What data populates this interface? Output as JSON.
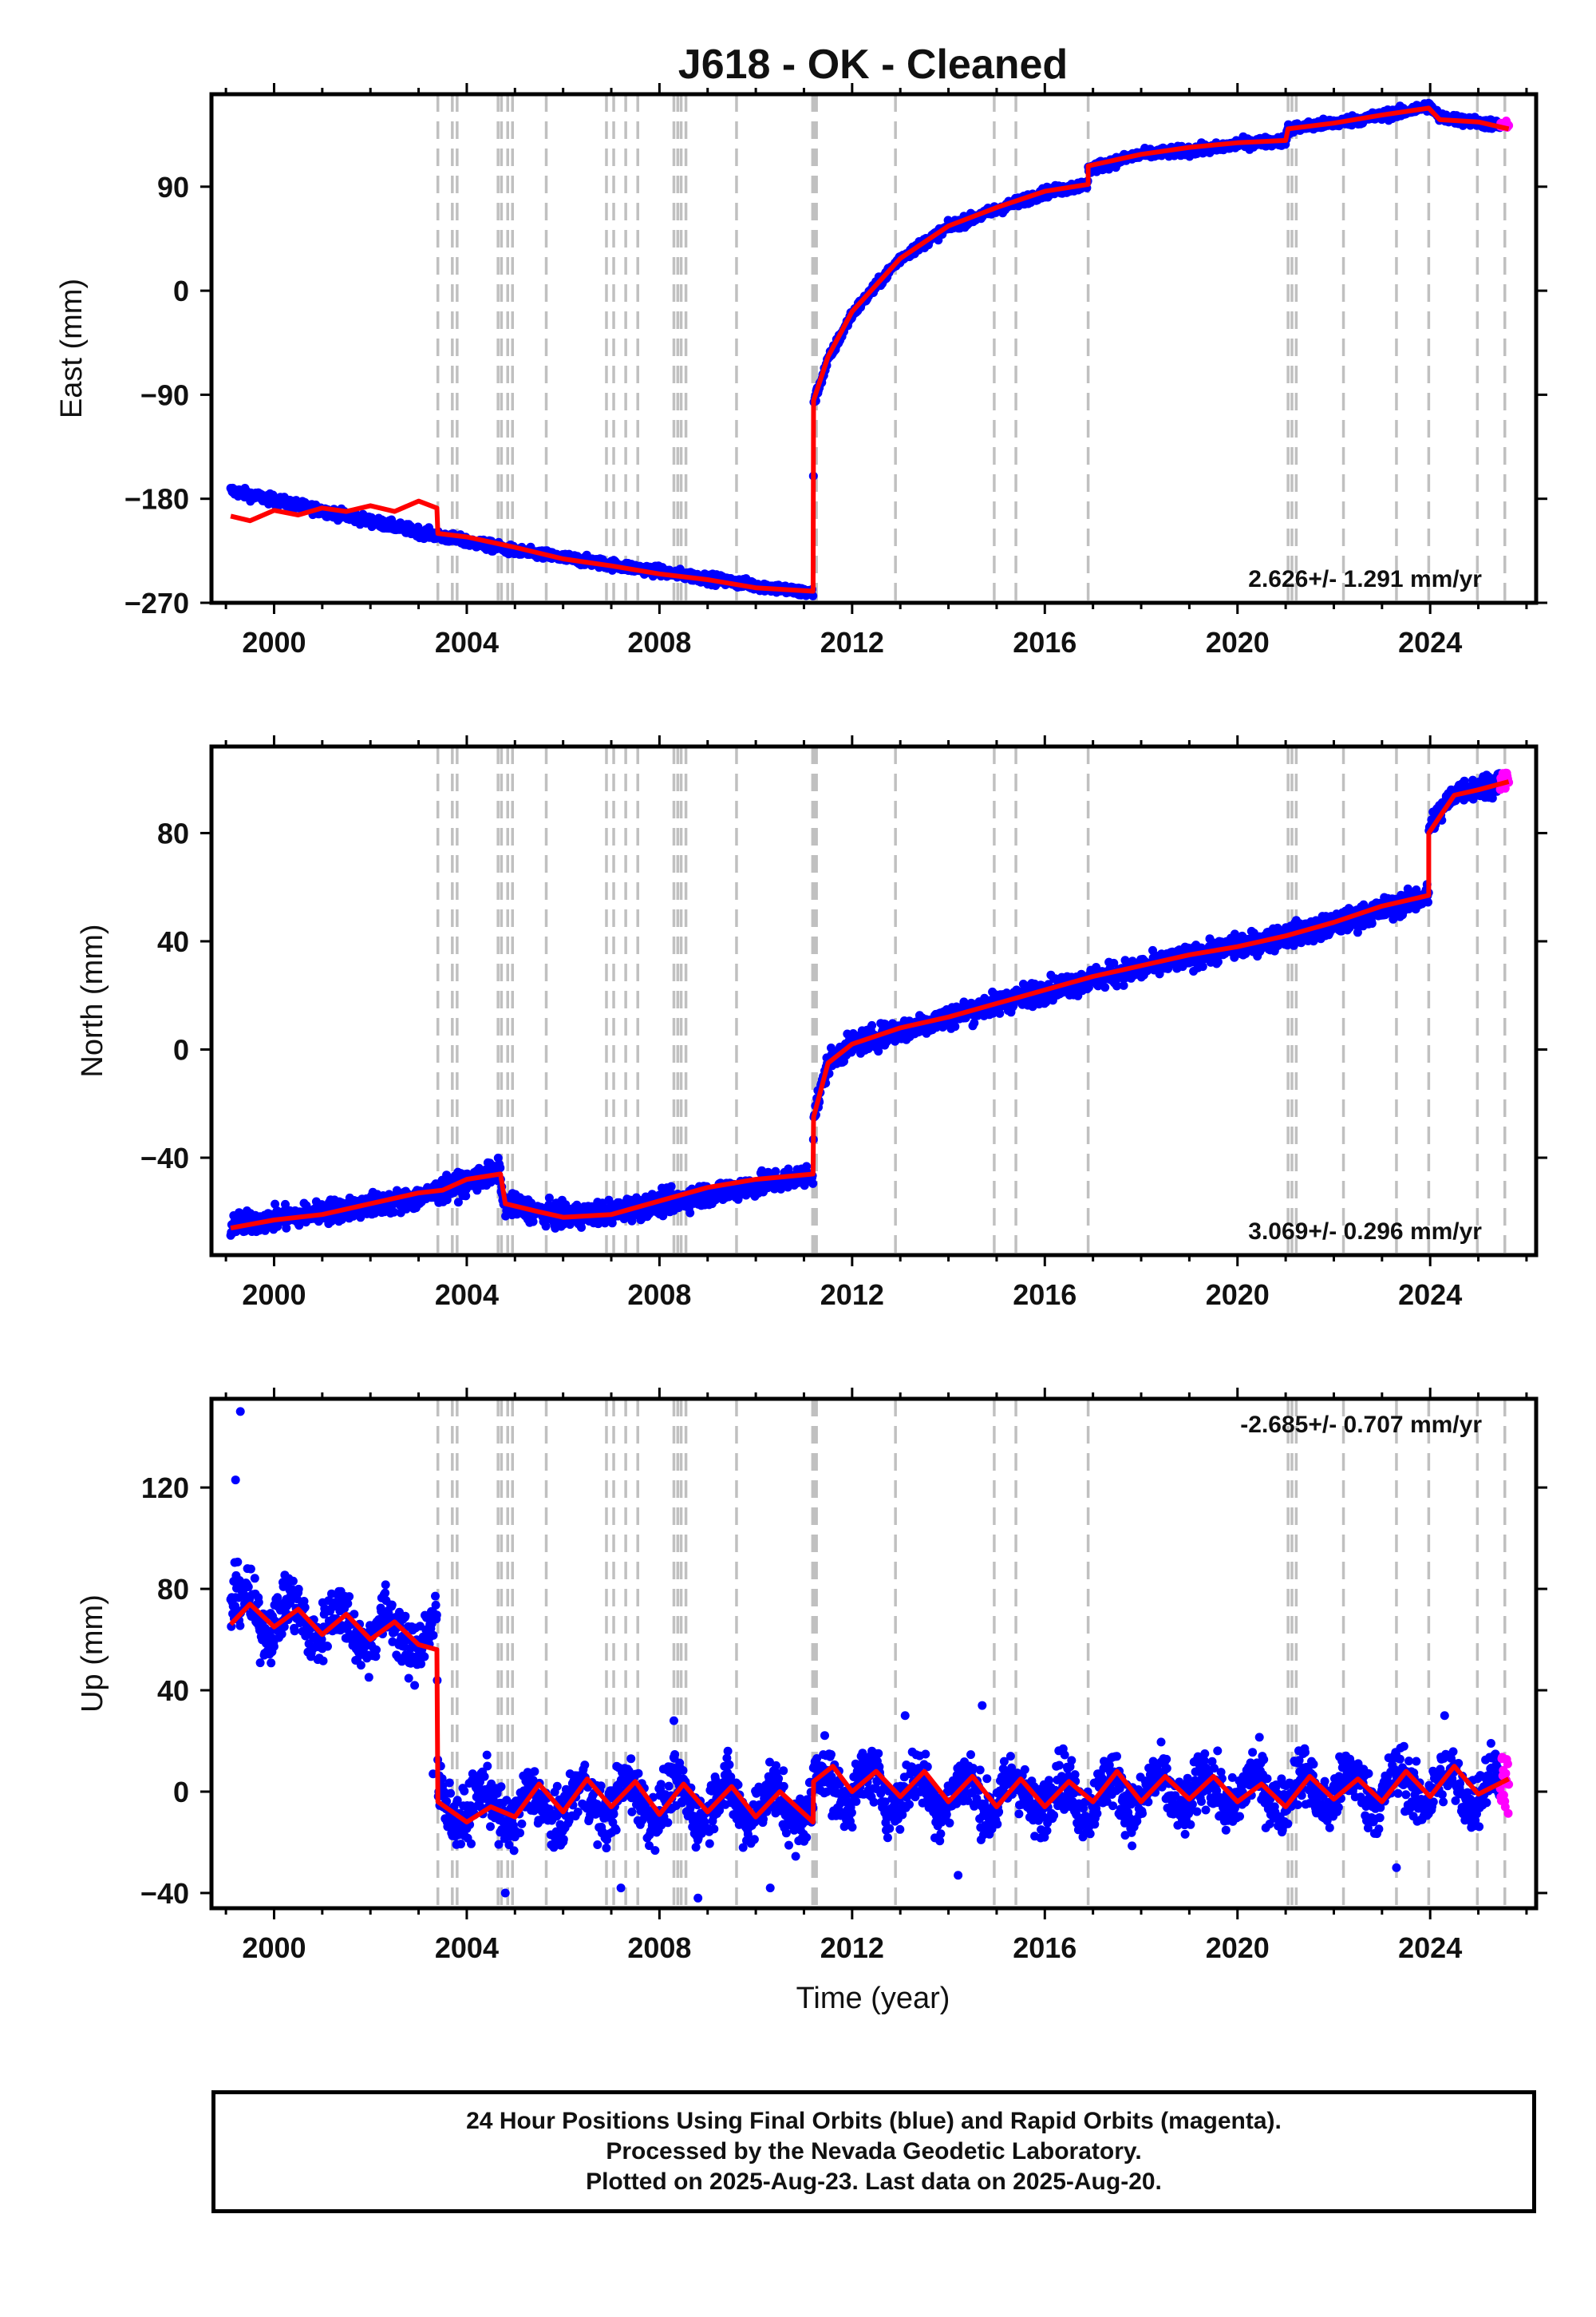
{
  "page": {
    "title": "J618  - OK - Cleaned"
  },
  "colors": {
    "final": "#0000ff",
    "rapid": "#ff00ff",
    "model": "#ff0000",
    "steps": "#c0c0c0",
    "frame": "#000000"
  },
  "xlabel": "Time (year)",
  "footer": {
    "line1": "24 Hour Positions Using Final Orbits (blue) and Rapid Orbits (magenta).",
    "line2": "Processed by the Nevada Geodetic Laboratory.",
    "line3": "Plotted on 2025-Aug-23. Last data on 2025-Aug-20."
  },
  "chart_data": [
    {
      "type": "scatter",
      "name": "east",
      "ylabel": "East (mm)",
      "xlim": [
        1998.7,
        2026.2
      ],
      "ylim": [
        -270,
        170
      ],
      "xticks": [
        2000,
        2004,
        2008,
        2012,
        2016,
        2020,
        2024
      ],
      "yticks": [
        -270,
        -180,
        -90,
        0,
        90
      ],
      "rate_label": "2.626+/- 1.291 mm/yr",
      "x_start": 1999.1,
      "x_end": 2025.63,
      "rapid_start": 2025.45,
      "noise_mm": 3,
      "outliers": [],
      "steps": [
        1999.1,
        -173,
        2003.4,
        -212,
        2005.0,
        -225,
        2011.19,
        -262,
        2011.2,
        -97,
        2011.5,
        -60,
        2012.0,
        -20,
        2013.0,
        28,
        2014.0,
        55,
        2015.0,
        70,
        2016.0,
        85,
        2016.9,
        92,
        2016.9,
        105,
        2018.0,
        118,
        2019.5,
        123,
        2020.0,
        127,
        2021.0,
        130,
        2021.05,
        140,
        2022.5,
        148,
        2023.5,
        155,
        2023.97,
        160,
        2024.2,
        150,
        2025.63,
        142
      ],
      "model": [
        1999.1,
        -195,
        1999.5,
        -199,
        2000.0,
        -190,
        2000.5,
        -194,
        2001.0,
        -188,
        2001.5,
        -191,
        2002.0,
        -186,
        2002.5,
        -191,
        2003.0,
        -182,
        2003.38,
        -188,
        2003.4,
        -210,
        2004.0,
        -213,
        2005.0,
        -222,
        2006.0,
        -232,
        2007.0,
        -238,
        2008.0,
        -245,
        2009.0,
        -250,
        2010.0,
        -257,
        2011.19,
        -260,
        2011.2,
        -95,
        2011.5,
        -57,
        2012.0,
        -18,
        2013.0,
        28,
        2014.0,
        56,
        2015.0,
        72,
        2016.0,
        86,
        2016.9,
        92,
        2016.9,
        108,
        2018.0,
        118,
        2019.0,
        124,
        2020.0,
        128,
        2021.0,
        130,
        2021.05,
        140,
        2022.0,
        145,
        2023.0,
        152,
        2023.97,
        158,
        2024.2,
        148,
        2025.0,
        146,
        2025.63,
        140
      ]
    },
    {
      "type": "scatter",
      "name": "north",
      "ylabel": "North (mm)",
      "xlim": [
        1998.7,
        2026.2
      ],
      "ylim": [
        -76,
        112
      ],
      "xticks": [
        2000,
        2004,
        2008,
        2012,
        2016,
        2020,
        2024
      ],
      "yticks": [
        -40,
        0,
        40,
        80
      ],
      "rate_label": "3.069+/- 0.296 mm/yr",
      "x_start": 1999.1,
      "x_end": 2025.63,
      "rapid_start": 2025.45,
      "noise_mm": 3,
      "outliers": [],
      "steps": [
        1999.1,
        -65,
        2003.0,
        -55,
        2004.7,
        -45,
        2004.75,
        -57,
        2006.0,
        -62,
        2007.0,
        -60,
        2008.0,
        -57,
        2011.19,
        -46,
        2011.2,
        -25,
        2011.5,
        -5,
        2012.0,
        2,
        2014.0,
        12,
        2016.0,
        22,
        2018.0,
        30,
        2020.0,
        38,
        2022.0,
        46,
        2023.97,
        57,
        2023.97,
        82,
        2024.5,
        95,
        2025.63,
        100
      ],
      "model": [
        1999.1,
        -66,
        2000.0,
        -63,
        2001.0,
        -61,
        2002.0,
        -57,
        2003.0,
        -53,
        2003.5,
        -52,
        2004.0,
        -48,
        2004.7,
        -46,
        2004.8,
        -57,
        2005.5,
        -60,
        2006.0,
        -62,
        2007.0,
        -61,
        2008.0,
        -56,
        2009.0,
        -51,
        2010.0,
        -48,
        2011.19,
        -46,
        2011.2,
        -25,
        2011.5,
        -5,
        2012.0,
        2,
        2013.0,
        8,
        2014.0,
        12,
        2015.0,
        17,
        2016.0,
        22,
        2017.0,
        27,
        2018.0,
        31,
        2019.0,
        35,
        2020.0,
        38,
        2021.0,
        42,
        2022.0,
        47,
        2023.0,
        53,
        2023.97,
        57,
        2023.97,
        80,
        2024.5,
        94,
        2025.0,
        96,
        2025.63,
        99
      ]
    },
    {
      "type": "scatter",
      "name": "up",
      "ylabel": "Up (mm)",
      "xlim": [
        1998.7,
        2026.2
      ],
      "ylim": [
        -46,
        155
      ],
      "xticks": [
        2000,
        2004,
        2008,
        2012,
        2016,
        2020,
        2024
      ],
      "yticks": [
        -40,
        0,
        40,
        80,
        120
      ],
      "rate_label": "-2.685+/- 0.707 mm/yr",
      "x_start": 1999.1,
      "x_end": 2025.63,
      "rapid_start": 2025.45,
      "noise_mm": 8,
      "outliers": [
        1999.2,
        123,
        1999.3,
        150,
        2003.3,
        7,
        2004.8,
        -40,
        2007.2,
        -38,
        2008.3,
        28,
        2008.8,
        -42,
        2010.3,
        -38,
        2013.1,
        30,
        2014.2,
        -33,
        2014.7,
        34,
        2023.3,
        -30,
        2024.3,
        30
      ],
      "steps": [
        1999.1,
        72,
        2003.38,
        60,
        2003.4,
        -5,
        2005.5,
        -7,
        2007.0,
        -3,
        2009.0,
        -4,
        2011.19,
        -6,
        2011.2,
        3,
        2015.0,
        -2,
        2020.0,
        0,
        2025.63,
        2
      ],
      "seasonal_amp": 7,
      "model": [
        1999.1,
        66,
        1999.5,
        74,
        2000.0,
        65,
        2000.5,
        72,
        2001.0,
        62,
        2001.5,
        70,
        2002.0,
        60,
        2002.5,
        67,
        2003.0,
        58,
        2003.38,
        56,
        2003.4,
        -4,
        2004.0,
        -12,
        2004.5,
        -6,
        2005.0,
        -10,
        2005.5,
        3,
        2006.0,
        -8,
        2006.5,
        5,
        2007.0,
        -6,
        2007.5,
        4,
        2008.0,
        -9,
        2008.5,
        3,
        2009.0,
        -8,
        2009.5,
        2,
        2010.0,
        -10,
        2010.5,
        0,
        2011.19,
        -12,
        2011.2,
        4,
        2011.6,
        10,
        2012.0,
        0,
        2012.5,
        8,
        2013.0,
        -2,
        2013.5,
        8,
        2014.0,
        -4,
        2014.5,
        6,
        2015.0,
        -6,
        2015.5,
        5,
        2016.0,
        -6,
        2016.5,
        4,
        2017.0,
        -4,
        2017.5,
        8,
        2018.0,
        -4,
        2018.5,
        6,
        2019.0,
        -3,
        2019.5,
        6,
        2020.0,
        -4,
        2020.5,
        3,
        2021.0,
        -6,
        2021.5,
        6,
        2022.0,
        -3,
        2022.5,
        5,
        2023.0,
        -4,
        2023.5,
        8,
        2024.0,
        -2,
        2024.5,
        10,
        2025.0,
        -1,
        2025.63,
        5
      ]
    }
  ],
  "step_epochs": [
    2003.4,
    2003.7,
    2003.8,
    2004.65,
    2004.72,
    2004.85,
    2004.95,
    2005.65,
    2006.9,
    2007.05,
    2007.3,
    2007.55,
    2008.3,
    2008.38,
    2008.45,
    2008.55,
    2009.6,
    2011.18,
    2011.22,
    2011.26,
    2012.9,
    2014.95,
    2015.4,
    2016.9,
    2021.05,
    2021.13,
    2021.22,
    2022.2,
    2023.3,
    2023.97,
    2024.98,
    2025.55
  ]
}
